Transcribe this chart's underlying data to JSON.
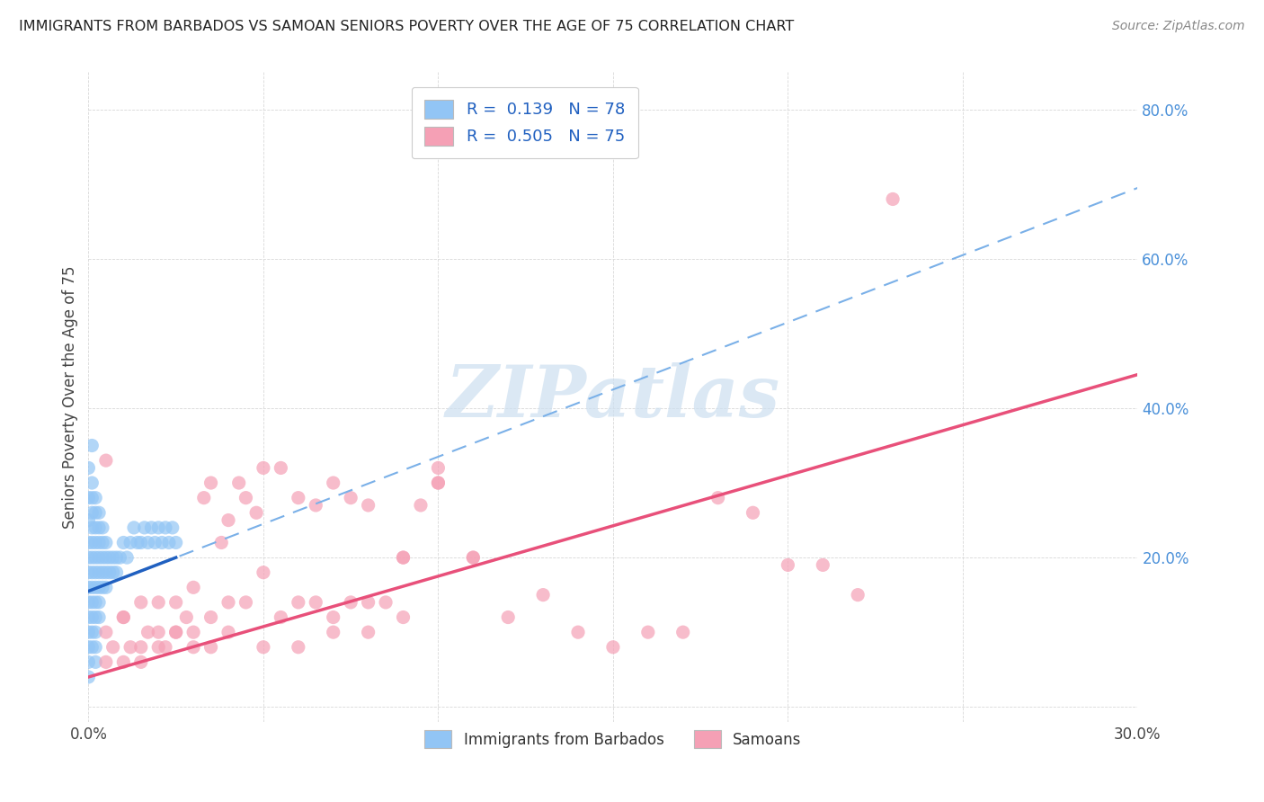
{
  "title": "IMMIGRANTS FROM BARBADOS VS SAMOAN SENIORS POVERTY OVER THE AGE OF 75 CORRELATION CHART",
  "source": "Source: ZipAtlas.com",
  "ylabel": "Seniors Poverty Over the Age of 75",
  "xlim": [
    0.0,
    0.3
  ],
  "ylim": [
    -0.02,
    0.85
  ],
  "xticks": [
    0.0,
    0.05,
    0.1,
    0.15,
    0.2,
    0.25,
    0.3
  ],
  "xtick_labels": [
    "0.0%",
    "",
    "",
    "",
    "",
    "",
    "30.0%"
  ],
  "yticks": [
    0.0,
    0.2,
    0.4,
    0.6,
    0.8
  ],
  "ytick_labels": [
    "",
    "20.0%",
    "40.0%",
    "60.0%",
    "80.0%"
  ],
  "blue_color": "#92c5f5",
  "pink_color": "#f5a0b5",
  "blue_solid_color": "#2060c0",
  "blue_dash_color": "#7ab0e8",
  "pink_line_color": "#e8507a",
  "watermark_color": "#ccdff0",
  "background_color": "#ffffff",
  "grid_color": "#d8d8d8",
  "barbados_x": [
    0.0,
    0.0,
    0.0,
    0.0,
    0.0,
    0.0,
    0.0,
    0.0,
    0.0,
    0.0,
    0.0,
    0.0,
    0.0,
    0.001,
    0.001,
    0.001,
    0.001,
    0.001,
    0.001,
    0.001,
    0.001,
    0.001,
    0.001,
    0.001,
    0.001,
    0.001,
    0.002,
    0.002,
    0.002,
    0.002,
    0.002,
    0.002,
    0.002,
    0.002,
    0.002,
    0.002,
    0.002,
    0.002,
    0.003,
    0.003,
    0.003,
    0.003,
    0.003,
    0.003,
    0.003,
    0.003,
    0.004,
    0.004,
    0.004,
    0.004,
    0.004,
    0.005,
    0.005,
    0.005,
    0.005,
    0.006,
    0.006,
    0.007,
    0.007,
    0.008,
    0.008,
    0.009,
    0.01,
    0.011,
    0.012,
    0.013,
    0.014,
    0.015,
    0.016,
    0.017,
    0.018,
    0.019,
    0.02,
    0.021,
    0.022,
    0.023,
    0.024,
    0.025
  ],
  "barbados_y": [
    0.32,
    0.28,
    0.25,
    0.22,
    0.2,
    0.18,
    0.16,
    0.14,
    0.12,
    0.1,
    0.08,
    0.06,
    0.04,
    0.35,
    0.3,
    0.28,
    0.26,
    0.24,
    0.22,
    0.2,
    0.18,
    0.16,
    0.14,
    0.12,
    0.1,
    0.08,
    0.28,
    0.26,
    0.24,
    0.22,
    0.2,
    0.18,
    0.16,
    0.14,
    0.12,
    0.1,
    0.08,
    0.06,
    0.26,
    0.24,
    0.22,
    0.2,
    0.18,
    0.16,
    0.14,
    0.12,
    0.24,
    0.22,
    0.2,
    0.18,
    0.16,
    0.22,
    0.2,
    0.18,
    0.16,
    0.2,
    0.18,
    0.2,
    0.18,
    0.2,
    0.18,
    0.2,
    0.22,
    0.2,
    0.22,
    0.24,
    0.22,
    0.22,
    0.24,
    0.22,
    0.24,
    0.22,
    0.24,
    0.22,
    0.24,
    0.22,
    0.24,
    0.22
  ],
  "samoan_x": [
    0.005,
    0.007,
    0.01,
    0.012,
    0.015,
    0.017,
    0.02,
    0.022,
    0.025,
    0.028,
    0.03,
    0.033,
    0.035,
    0.038,
    0.04,
    0.043,
    0.045,
    0.048,
    0.05,
    0.055,
    0.06,
    0.065,
    0.07,
    0.075,
    0.08,
    0.085,
    0.09,
    0.095,
    0.1,
    0.11,
    0.005,
    0.01,
    0.015,
    0.02,
    0.025,
    0.03,
    0.035,
    0.04,
    0.045,
    0.05,
    0.055,
    0.06,
    0.065,
    0.07,
    0.075,
    0.08,
    0.09,
    0.1,
    0.11,
    0.12,
    0.13,
    0.14,
    0.15,
    0.16,
    0.17,
    0.18,
    0.19,
    0.2,
    0.21,
    0.22,
    0.005,
    0.01,
    0.015,
    0.02,
    0.025,
    0.03,
    0.035,
    0.04,
    0.05,
    0.06,
    0.07,
    0.08,
    0.09,
    0.1,
    0.23
  ],
  "samoan_y": [
    0.1,
    0.08,
    0.12,
    0.08,
    0.06,
    0.1,
    0.14,
    0.08,
    0.14,
    0.12,
    0.16,
    0.28,
    0.3,
    0.22,
    0.25,
    0.3,
    0.28,
    0.26,
    0.32,
    0.32,
    0.28,
    0.27,
    0.3,
    0.28,
    0.27,
    0.14,
    0.2,
    0.27,
    0.3,
    0.2,
    0.06,
    0.06,
    0.08,
    0.08,
    0.1,
    0.1,
    0.12,
    0.14,
    0.14,
    0.18,
    0.12,
    0.14,
    0.14,
    0.12,
    0.14,
    0.14,
    0.2,
    0.32,
    0.2,
    0.12,
    0.15,
    0.1,
    0.08,
    0.1,
    0.1,
    0.28,
    0.26,
    0.19,
    0.19,
    0.15,
    0.33,
    0.12,
    0.14,
    0.1,
    0.1,
    0.08,
    0.08,
    0.1,
    0.08,
    0.08,
    0.1,
    0.1,
    0.12,
    0.3,
    0.68
  ],
  "blue_regression_slope": 1.8,
  "blue_regression_intercept": 0.155,
  "pink_regression_slope": 1.35,
  "pink_regression_intercept": 0.04
}
